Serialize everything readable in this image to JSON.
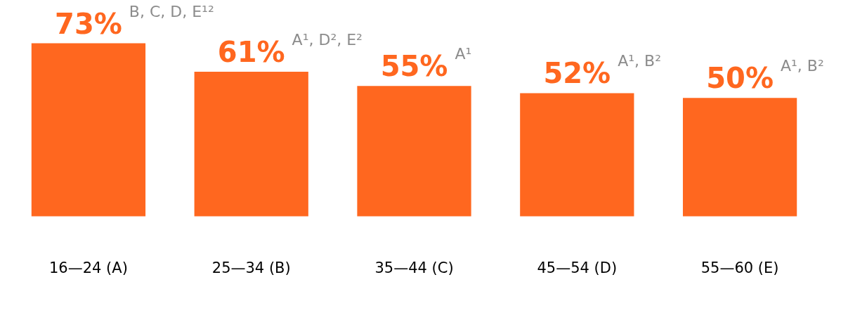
{
  "chart_data": {
    "type": "bar",
    "categories": [
      "16—24 (A)",
      "25—34 (B)",
      "35—44 (C)",
      "45—54 (D)",
      "55—60 (E)"
    ],
    "values": [
      73,
      61,
      55,
      52,
      50
    ],
    "color": "#ff671f",
    "value_labels": [
      "73%",
      "61%",
      "55%",
      "52%",
      "50%"
    ],
    "annotations": [
      "B, C, D, E¹²",
      "A¹, D², E²",
      "A¹",
      "A¹, B²",
      "A¹, B²"
    ],
    "grid": false,
    "legend": false
  }
}
